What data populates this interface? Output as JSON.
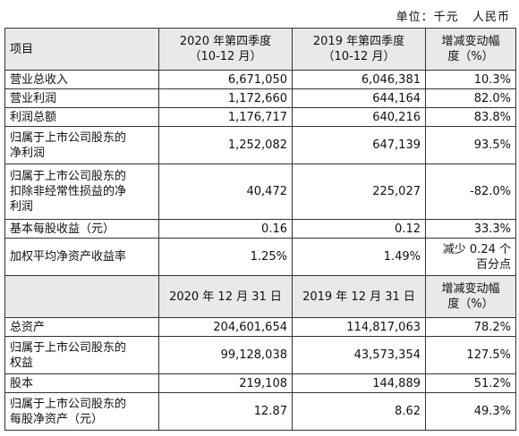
{
  "unit": "单位：千元   人民币",
  "header": {
    "item": "项目",
    "col1": "2020 年第四季度",
    "col1_sub": "（10-12 月）",
    "col2": "2019 年第四季度",
    "col2_sub": "（10-12 月）",
    "col3": "增减变动幅",
    "col3_sub": "度（%）"
  },
  "rows1": [
    {
      "label": "营业总收入",
      "v1": "6,671,050",
      "v2": "6,046,381",
      "v3": "10.3%"
    },
    {
      "label": "营业利润",
      "v1": "1,172,660",
      "v2": "644,164",
      "v3": "82.0%"
    },
    {
      "label": "利润总额",
      "v1": "1,176,717",
      "v2": "640,216",
      "v3": "83.8%"
    },
    {
      "label": "归属于上市公司股东的",
      "label2": "净利润",
      "v1": "1,252,082",
      "v2": "647,139",
      "v3": "93.5%"
    },
    {
      "label": "归属于上市公司股东的",
      "label2": "扣除非经常性损益的净",
      "label3": "利润",
      "v1": "40,472",
      "v2": "225,027",
      "v3": "-82.0%"
    },
    {
      "label": "基本每股收益（元）",
      "v1": "0.16",
      "v2": "0.12",
      "v3": "33.3%"
    },
    {
      "label": "加权平均净资产收益率",
      "v1": "1.25%",
      "v2": "1.49%",
      "v3": "减少 0.24 个",
      "v3b": "百分点"
    }
  ],
  "header2": {
    "col1": "2020 年 12 月 31 日",
    "col2": "2019 年 12 月 31 日",
    "col3": "增减变动幅",
    "col3_sub": "度（%）"
  },
  "rows2": [
    {
      "label": "总资产",
      "v1": "204,601,654",
      "v2": "114,817,063",
      "v3": "78.2%"
    },
    {
      "label": "归属于上市公司股东的",
      "label2": "权益",
      "v1": "99,128,038",
      "v2": "43,573,354",
      "v3": "127.5%"
    },
    {
      "label": "股本",
      "v1": "219,108",
      "v2": "144,889",
      "v3": "51.2%"
    },
    {
      "label": "归属于上市公司股东的",
      "label2": "每股净资产（元）",
      "v1": "12.87",
      "v2": "8.62",
      "v3": "49.3%"
    }
  ]
}
